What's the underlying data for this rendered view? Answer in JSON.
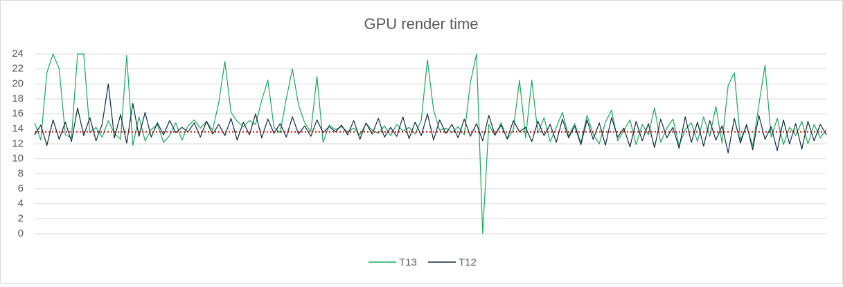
{
  "chart_data": {
    "type": "line",
    "title": "GPU render time",
    "series": [
      {
        "name": "T13",
        "color": "#1aa75a",
        "values": [
          14.8,
          12.5,
          21.5,
          24,
          22,
          13.2,
          12.8,
          24,
          24,
          13.5,
          14.2,
          12.9,
          15.1,
          13.4,
          12.6,
          23.8,
          11.8,
          15.6,
          12.4,
          13.9,
          14.6,
          12.2,
          13.1,
          14.8,
          12.5,
          14.4,
          15.2,
          14.1,
          15.0,
          13.8,
          17.5,
          23.0,
          16.2,
          15.0,
          14.3,
          15.1,
          14.6,
          17.8,
          20.5,
          14.2,
          13.5,
          18.0,
          22.0,
          17.2,
          14.8,
          13.6,
          21.0,
          12.2,
          14.5,
          13.9,
          14.3,
          13.6,
          14.1,
          13.2,
          14.7,
          13.8,
          13.4,
          14.4,
          13.1,
          14.6,
          13.7,
          14.2,
          13.3,
          15.2,
          23.2,
          16.5,
          13.8,
          14.1,
          13.5,
          14.3,
          13.2,
          20.2,
          24.0,
          0,
          14.6,
          13.1,
          14.8,
          12.6,
          13.9,
          20.5,
          12.8,
          20.5,
          13.4,
          15.5,
          12.3,
          14.2,
          16.2,
          13.0,
          14.7,
          12.1,
          15.8,
          13.3,
          12.0,
          14.9,
          16.5,
          12.4,
          13.8,
          15.2,
          11.9,
          14.6,
          13.2,
          16.8,
          12.2,
          14.1,
          15.3,
          11.8,
          13.9,
          14.8,
          12.3,
          15.6,
          13.0,
          17.0,
          12.1,
          19.8,
          21.5,
          12.5,
          14.4,
          11.7,
          17.2,
          22.5,
          12.9,
          15.4,
          11.9,
          14.2,
          13.1,
          15.0,
          12.0,
          14.6,
          12.8,
          13.9
        ]
      },
      {
        "name": "T12",
        "color": "#0e2841",
        "values": [
          13.2,
          14.5,
          11.8,
          15.2,
          12.6,
          14.9,
          12.3,
          16.8,
          13.1,
          15.5,
          12.4,
          14.6,
          20.0,
          12.8,
          15.9,
          12.1,
          17.4,
          13.0,
          16.2,
          12.9,
          14.8,
          13.2,
          15.1,
          13.5,
          14.2,
          13.6,
          14.8,
          12.9,
          15.0,
          13.3,
          14.6,
          13.1,
          15.4,
          12.5,
          14.9,
          13.2,
          16.0,
          12.8,
          15.3,
          13.4,
          14.7,
          12.9,
          15.6,
          13.3,
          14.4,
          13.0,
          15.2,
          13.5,
          14.3,
          13.6,
          14.5,
          13.2,
          15.1,
          12.6,
          14.8,
          13.3,
          15.4,
          12.9,
          14.2,
          13.0,
          15.6,
          12.7,
          14.9,
          13.1,
          16.0,
          12.5,
          15.2,
          13.4,
          14.6,
          12.8,
          15.3,
          13.0,
          14.7,
          12.4,
          15.8,
          13.2,
          14.5,
          12.7,
          15.1,
          13.6,
          14.2,
          12.3,
          15.0,
          13.1,
          14.6,
          12.2,
          15.3,
          12.8,
          14.4,
          11.9,
          15.2,
          12.6,
          14.8,
          11.8,
          15.5,
          12.9,
          14.1,
          11.6,
          15.0,
          12.4,
          14.7,
          11.5,
          15.3,
          12.8,
          14.2,
          11.4,
          15.6,
          12.2,
          14.9,
          11.7,
          15.1,
          12.5,
          14.4,
          10.8,
          15.4,
          12.1,
          14.6,
          11.2,
          15.8,
          12.6,
          14.3,
          11.1,
          15.2,
          12.0,
          14.7,
          11.3,
          15.0,
          12.4,
          14.6,
          13.2
        ]
      }
    ],
    "reference_line": {
      "value": 13.6,
      "color": "#c00000"
    },
    "ylim": [
      0,
      24
    ],
    "yticks": [
      0,
      2,
      4,
      6,
      8,
      10,
      12,
      14,
      16,
      18,
      20,
      22,
      24
    ],
    "grid": true
  }
}
